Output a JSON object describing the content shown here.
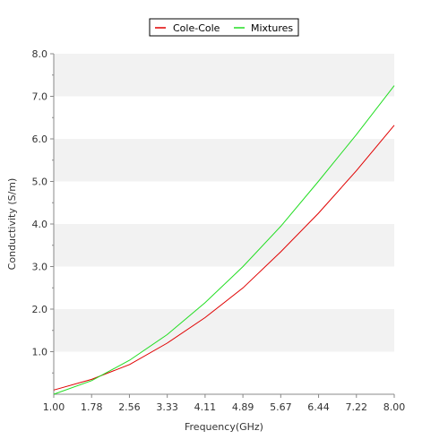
{
  "chart_data": {
    "type": "line",
    "xlabel": "Frequency(GHz)",
    "ylabel": "Conductivity (S/m)",
    "xlim": [
      1.0,
      8.0
    ],
    "ylim": [
      0.0,
      8.0
    ],
    "x_ticks": [
      "1.00",
      "1.78",
      "2.56",
      "3.33",
      "4.11",
      "4.89",
      "5.67",
      "6.44",
      "7.22",
      "8.00"
    ],
    "y_ticks": [
      "1.0",
      "2.0",
      "3.0",
      "4.0",
      "5.0",
      "6.0",
      "7.0",
      "8.0"
    ],
    "grid": "alternating horizontal bands",
    "legend_position": "top-center",
    "series": [
      {
        "name": "Cole-Cole",
        "color": "#e00000",
        "x": [
          1.0,
          1.78,
          2.56,
          3.33,
          4.11,
          4.89,
          5.67,
          6.44,
          7.22,
          8.0
        ],
        "y": [
          0.1,
          0.35,
          0.7,
          1.2,
          1.8,
          2.5,
          3.35,
          4.25,
          5.25,
          6.32
        ]
      },
      {
        "name": "Mixtures",
        "color": "#22dd22",
        "x": [
          1.0,
          1.78,
          2.56,
          3.33,
          4.11,
          4.89,
          5.67,
          6.44,
          7.22,
          8.0
        ],
        "y": [
          0.0,
          0.32,
          0.8,
          1.4,
          2.15,
          3.0,
          3.95,
          5.0,
          6.1,
          7.25
        ]
      }
    ]
  }
}
